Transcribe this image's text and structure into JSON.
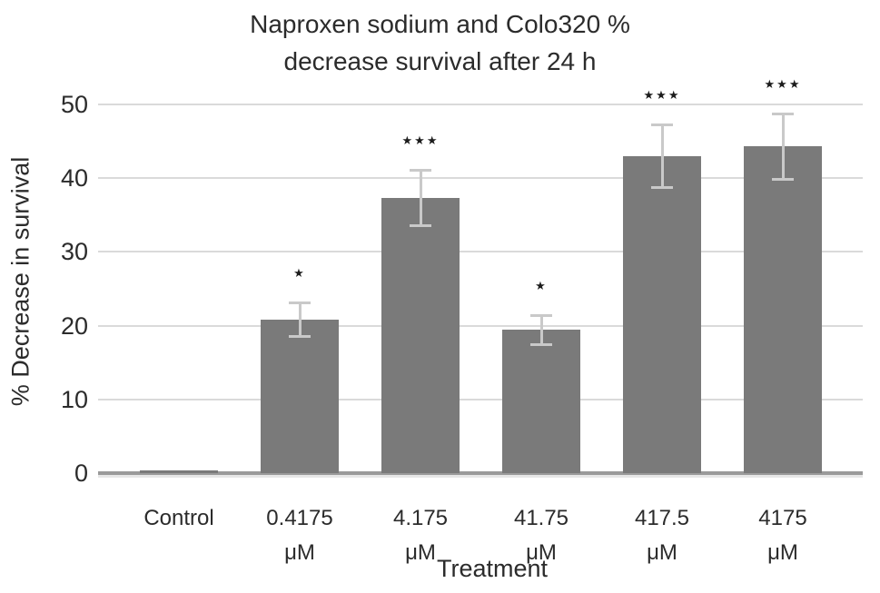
{
  "chart_data": {
    "type": "bar",
    "title": "Naproxen sodium and Colo320 %\ndecrease survival after 24 h",
    "xlabel": "Treatment",
    "ylabel": "% Decrease in survival",
    "categories": [
      "Control",
      "0.4175\nμM",
      "4.175\nμM",
      "41.75\nμM",
      "417.5\nμM",
      "4175\nμM"
    ],
    "values": [
      0,
      20.8,
      37.3,
      19.4,
      43.0,
      44.3
    ],
    "errors": [
      0,
      2.3,
      3.8,
      2.0,
      4.3,
      4.5
    ],
    "significance": [
      "",
      "*",
      "***",
      "*",
      "***",
      "***"
    ],
    "ylim": [
      0,
      50
    ],
    "yticks": [
      0,
      10,
      20,
      30,
      40,
      50
    ],
    "grid": true,
    "legend": null,
    "colors": {
      "bar": "#7a7a7a",
      "error_bar": "#c9c9c9",
      "gridline": "#dadada",
      "axis_line": "#9a9a9a",
      "text": "#2b2b2b",
      "significance": "#1c1c1c"
    }
  }
}
